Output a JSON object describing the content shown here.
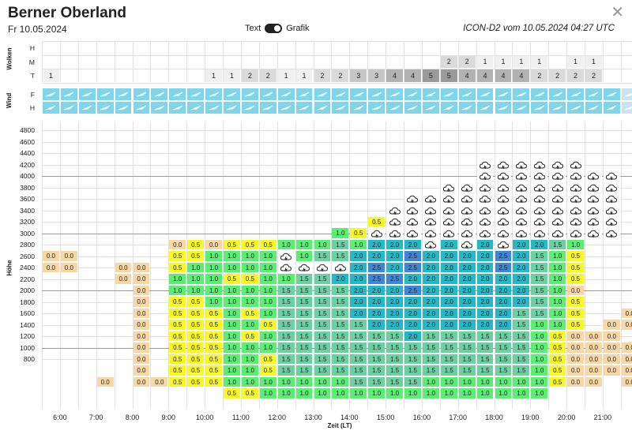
{
  "header": {
    "region": "Berner Oberland",
    "date": "Fr 10.05.2024",
    "toggle_text": "Text",
    "toggle_grafik": "Grafik",
    "model": "ICON-D2 vom 10.05.2024 04:27 UTC",
    "close": "✕"
  },
  "sections": {
    "clouds": "Wolken",
    "wind": "Wind",
    "height": "Höhe"
  },
  "cloud_row_labels": [
    "H",
    "M",
    "T"
  ],
  "wind_row_labels": [
    "F",
    "H"
  ],
  "x_axis_title": "Zeit (LT)",
  "time_labels": [
    "6:00",
    "7:00",
    "8:00",
    "9:00",
    "10:00",
    "11:00",
    "12:00",
    "13:00",
    "14:00",
    "15:00",
    "16:00",
    "17:00",
    "18:00",
    "19:00",
    "20:00",
    "21:00"
  ],
  "height_labels": [
    "4800",
    "4600",
    "4400",
    "4200",
    "4000",
    "3800",
    "3600",
    "3400",
    "3200",
    "3000",
    "2800",
    "2600",
    "2400",
    "2200",
    "2000",
    "1800",
    "1600",
    "1400",
    "1200",
    "1000",
    "800"
  ],
  "clouds": {
    "H": [
      "",
      "",
      "",
      "",
      "",
      "",
      "",
      "",
      "",
      "",
      "",
      "",
      "",
      "",
      "",
      "",
      "",
      "",
      "",
      "",
      "",
      "",
      "",
      "",
      "",
      "",
      "",
      "",
      "",
      "",
      "",
      "",
      "",
      ""
    ],
    "M": [
      "",
      "",
      "",
      "",
      "",
      "",
      "",
      "",
      "",
      "",
      "",
      "",
      "",
      "",
      "",
      "",
      "",
      "",
      "",
      "",
      "",
      "",
      "2",
      "2",
      "1",
      "1",
      "1",
      "1",
      "",
      "1",
      "1",
      "",
      "",
      ""
    ],
    "T": [
      "1",
      "",
      "",
      "",
      "",
      "",
      "",
      "",
      "",
      "1",
      "1",
      "2",
      "2",
      "1",
      "1",
      "2",
      "2",
      "3",
      "3",
      "4",
      "4",
      "5",
      "5",
      "4",
      "4",
      "4",
      "4",
      "2",
      "2",
      "2",
      "2",
      "",
      "",
      ""
    ]
  },
  "wind_from_col": 33,
  "lift_rows": [
    [
      "",
      "",
      "",
      "",
      "",
      "",
      "",
      "",
      "",
      "",
      "",
      "",
      "",
      "",
      "",
      "",
      "",
      "",
      "",
      "",
      "",
      "",
      "",
      "",
      "",
      "",
      "",
      "",
      "",
      "",
      "",
      "",
      "",
      ""
    ],
    [
      "",
      "",
      "",
      "",
      "",
      "",
      "",
      "",
      "",
      "",
      "",
      "",
      "",
      "",
      "",
      "",
      "",
      "",
      "",
      "",
      "",
      "",
      "",
      "",
      "",
      "",
      "",
      "",
      "",
      "",
      "",
      "",
      "",
      ""
    ],
    [
      "",
      "",
      "",
      "",
      "",
      "",
      "",
      "",
      "",
      "",
      "",
      "",
      "",
      "",
      "",
      "",
      "",
      "",
      "",
      "",
      "",
      "",
      "",
      "",
      "",
      "",
      "",
      "",
      "",
      "",
      "",
      "",
      "",
      ""
    ],
    [
      "",
      "",
      "",
      "",
      "",
      "",
      "",
      "",
      "",
      "",
      "",
      "",
      "",
      "",
      "",
      "",
      "",
      "",
      "",
      "",
      "",
      "",
      "",
      "",
      "C",
      "C",
      "C",
      "C",
      "C",
      "C",
      "",
      "",
      "",
      ""
    ],
    [
      "",
      "",
      "",
      "",
      "",
      "",
      "",
      "",
      "",
      "",
      "",
      "",
      "",
      "",
      "",
      "",
      "",
      "",
      "",
      "",
      "",
      "",
      "",
      "",
      "C",
      "C",
      "C",
      "C",
      "C",
      "C",
      "C",
      "C",
      "",
      ""
    ],
    [
      "",
      "",
      "",
      "",
      "",
      "",
      "",
      "",
      "",
      "",
      "",
      "",
      "",
      "",
      "",
      "",
      "",
      "",
      "",
      "",
      "",
      "",
      "C",
      "C",
      "C",
      "C",
      "C",
      "C",
      "C",
      "C",
      "C",
      "C",
      "",
      ""
    ],
    [
      "",
      "",
      "",
      "",
      "",
      "",
      "",
      "",
      "",
      "",
      "",
      "",
      "",
      "",
      "",
      "",
      "",
      "",
      "",
      "",
      "C",
      "C",
      "C",
      "C",
      "C",
      "C",
      "C",
      "C",
      "C",
      "C",
      "C",
      "C",
      "",
      ""
    ],
    [
      "",
      "",
      "",
      "",
      "",
      "",
      "",
      "",
      "",
      "",
      "",
      "",
      "",
      "",
      "",
      "",
      "",
      "",
      "",
      "C",
      "C",
      "C",
      "C",
      "C",
      "C",
      "C",
      "C",
      "C",
      "C",
      "C",
      "C",
      "C",
      "",
      ""
    ],
    [
      "",
      "",
      "",
      "",
      "",
      "",
      "",
      "",
      "",
      "",
      "",
      "",
      "",
      "",
      "",
      "",
      "",
      "",
      "0.5",
      "C",
      "C",
      "C",
      "C",
      "C",
      "C",
      "C",
      "C",
      "C",
      "C",
      "C",
      "C",
      "C",
      "",
      ""
    ],
    [
      "",
      "",
      "",
      "",
      "",
      "",
      "",
      "",
      "",
      "",
      "",
      "",
      "",
      "",
      "",
      "",
      "1.0",
      "0.5",
      "C",
      "C",
      "C",
      "C",
      "C",
      "C",
      "C",
      "C",
      "C",
      "C",
      "C",
      "C",
      "C",
      "C",
      "",
      ""
    ],
    [
      "",
      "",
      "",
      "",
      "",
      "",
      "",
      "0.0",
      "0.5",
      "0.0",
      "0.5",
      "0.5",
      "0.5",
      "1.0",
      "1.0",
      "1.0",
      "1.5",
      "1.0",
      "2.0",
      "2.0",
      "2.0",
      "C",
      "2.0",
      "C",
      "2.0",
      "C",
      "2.0",
      "2.0",
      "1.5",
      "1.0",
      "",
      "",
      "",
      ""
    ],
    [
      "0.0",
      "0.0",
      "",
      "",
      "",
      "",
      "",
      "0.5",
      "0.5",
      "1.0",
      "1.0",
      "1.0",
      "1.0",
      "C",
      "1.0",
      "1.5",
      "1.5",
      "2.0",
      "2.0",
      "2.0",
      "2.5",
      "2.0",
      "2.0",
      "2.0",
      "2.0",
      "2.5",
      "2.0",
      "1.5",
      "1.0",
      "0.5",
      "",
      "",
      "",
      ""
    ],
    [
      "0.0",
      "0.0",
      "",
      "",
      "0.0",
      "0.0",
      "",
      "0.5",
      "1.0",
      "1.0",
      "1.0",
      "1.0",
      "1.0",
      "C",
      "C",
      "C",
      "C",
      "2.0",
      "2.5",
      "2.0",
      "2.5",
      "2.0",
      "2.0",
      "2.0",
      "2.0",
      "2.5",
      "2.0",
      "1.5",
      "1.0",
      "0.5",
      "",
      "",
      "",
      ""
    ],
    [
      "",
      "",
      "",
      "",
      "0.0",
      "0.0",
      "",
      "1.0",
      "1.0",
      "1.0",
      "0.5",
      "0.5",
      "1.0",
      "1.0",
      "1.5",
      "1.5",
      "2.0",
      "2.0",
      "2.5",
      "2.5",
      "2.0",
      "2.0",
      "2.0",
      "2.0",
      "2.0",
      "2.0",
      "2.0",
      "1.5",
      "1.0",
      "0.5",
      "",
      "",
      "",
      ""
    ],
    [
      "",
      "",
      "",
      "",
      "",
      "0.0",
      "",
      "1.0",
      "1.0",
      "1.0",
      "1.0",
      "1.0",
      "1.0",
      "1.5",
      "1.5",
      "1.5",
      "1.5",
      "2.0",
      "2.0",
      "2.0",
      "2.5",
      "2.0",
      "2.0",
      "2.0",
      "2.0",
      "2.0",
      "2.0",
      "1.5",
      "1.0",
      "0.0",
      "",
      "",
      "",
      ""
    ],
    [
      "",
      "",
      "",
      "",
      "",
      "0.0",
      "",
      "0.5",
      "0.5",
      "1.0",
      "1.0",
      "1.0",
      "1.0",
      "1.5",
      "1.5",
      "1.5",
      "1.5",
      "2.0",
      "2.0",
      "2.0",
      "2.0",
      "2.0",
      "2.0",
      "2.0",
      "2.0",
      "2.0",
      "2.0",
      "1.5",
      "1.0",
      "0.5",
      "",
      "",
      "",
      ""
    ],
    [
      "",
      "",
      "",
      "",
      "",
      "0.0",
      "",
      "0.5",
      "0.5",
      "0.5",
      "1.0",
      "0.5",
      "1.0",
      "1.5",
      "1.5",
      "1.5",
      "1.5",
      "2.0",
      "2.0",
      "2.0",
      "2.0",
      "2.0",
      "2.0",
      "2.0",
      "2.0",
      "2.0",
      "1.5",
      "1.5",
      "1.0",
      "0.5",
      "",
      "",
      "0.0",
      "0.0"
    ],
    [
      "",
      "",
      "",
      "",
      "",
      "0.0",
      "",
      "0.5",
      "0.5",
      "0.5",
      "1.0",
      "1.0",
      "0.5",
      "1.5",
      "1.5",
      "1.5",
      "1.5",
      "1.5",
      "2.0",
      "2.0",
      "2.0",
      "2.0",
      "2.0",
      "2.0",
      "2.0",
      "2.0",
      "1.5",
      "1.0",
      "1.0",
      "0.5",
      "",
      "0.0",
      "0.0",
      "0.0"
    ],
    [
      "",
      "",
      "",
      "",
      "",
      "0.0",
      "",
      "0.5",
      "0.5",
      "0.5",
      "1.0",
      "0.5",
      "1.0",
      "1.5",
      "1.5",
      "1.5",
      "1.5",
      "1.5",
      "1.5",
      "1.5",
      "2.0",
      "1.5",
      "1.5",
      "1.5",
      "1.5",
      "1.5",
      "1.5",
      "1.0",
      "0.5",
      "0.0",
      "0.0",
      "0.0",
      "",
      "0.0"
    ],
    [
      "",
      "",
      "",
      "",
      "",
      "0.0",
      "",
      "0.5",
      "0.5",
      "0.5",
      "1.0",
      "1.0",
      "1.0",
      "1.5",
      "1.5",
      "1.5",
      "1.5",
      "1.5",
      "1.5",
      "1.5",
      "1.5",
      "1.5",
      "1.5",
      "1.5",
      "1.5",
      "1.5",
      "1.5",
      "1.0",
      "0.5",
      "0.0",
      "0.0",
      "0.0",
      "0.0",
      ""
    ],
    [
      "",
      "",
      "",
      "",
      "",
      "0.0",
      "",
      "0.5",
      "0.5",
      "0.5",
      "1.0",
      "1.0",
      "0.5",
      "1.5",
      "1.5",
      "1.5",
      "1.5",
      "1.5",
      "1.5",
      "1.5",
      "1.5",
      "1.5",
      "1.5",
      "1.5",
      "1.5",
      "1.5",
      "1.5",
      "1.0",
      "0.5",
      "0.0",
      "0.0",
      "0.0",
      "0.0",
      ""
    ],
    [
      "",
      "",
      "",
      "",
      "",
      "0.0",
      "",
      "0.5",
      "0.5",
      "0.5",
      "1.0",
      "1.0",
      "0.5",
      "1.5",
      "1.5",
      "1.5",
      "1.5",
      "1.5",
      "1.5",
      "1.5",
      "1.5",
      "1.5",
      "1.5",
      "1.5",
      "1.5",
      "1.5",
      "1.5",
      "1.0",
      "0.5",
      "0.0",
      "0.0",
      "0.0",
      "0.0",
      "0.0"
    ],
    [
      "",
      "",
      "",
      "0.0",
      "",
      "0.0",
      "0.0",
      "0.5",
      "0.5",
      "0.5",
      "1.0",
      "1.0",
      "1.0",
      "1.0",
      "1.0",
      "1.0",
      "1.0",
      "1.5",
      "1.5",
      "1.5",
      "1.5",
      "1.0",
      "1.0",
      "1.0",
      "1.0",
      "1.0",
      "1.0",
      "1.0",
      "0.5",
      "0.0",
      "0.0",
      "",
      "0.0",
      ""
    ],
    [
      "",
      "",
      "",
      "",
      "",
      "",
      "",
      "",
      "",
      "",
      "0.5",
      "0.5",
      "1.0",
      "1.0",
      "1.0",
      "1.0",
      "1.0",
      "1.0",
      "1.0",
      "1.0",
      "1.0",
      "1.0",
      "1.0",
      "1.0",
      "1.0",
      "1.0",
      "1.0",
      "1.0",
      "",
      "",
      "",
      "",
      "",
      ""
    ]
  ],
  "colors": {
    "0.0": "#f8d7a6",
    "0.5": "#f7f72a",
    "1.0": "#5ced74",
    "1.5": "#6dd0a2",
    "2.0": "#27b8c7",
    "2.5": "#3e86d8",
    "cloud_bg": "#ffffff"
  }
}
